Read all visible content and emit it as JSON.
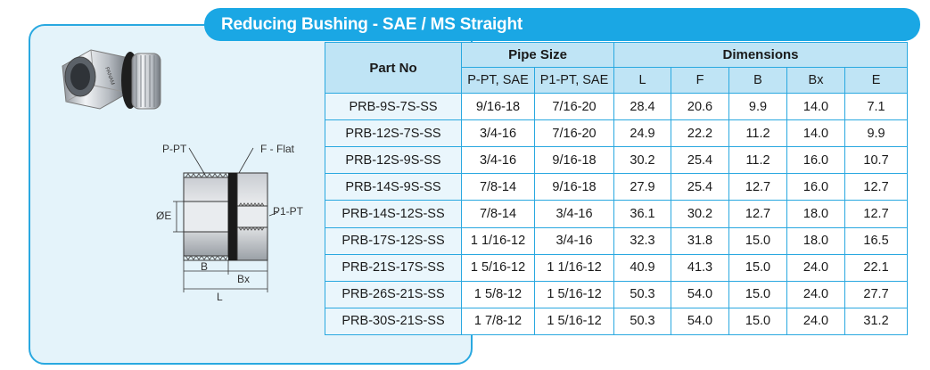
{
  "title": "Reducing Bushing - SAE / MS Straight",
  "image": {
    "brand_mark": "PANAM",
    "labels": {
      "p_pt": "P-PT",
      "f_flat": "F - Flat",
      "e": "ØE",
      "p1_pt": "P1-PT",
      "b": "B",
      "bx": "Bx",
      "l": "L"
    }
  },
  "table": {
    "headers": {
      "part_no": "Part No",
      "pipe_size": "Pipe Size",
      "dimensions": "Dimensions",
      "p_pt_sae": "P-PT, SAE",
      "p1_pt_sae": "P1-PT, SAE",
      "l": "L",
      "f": "F",
      "b": "B",
      "bx": "Bx",
      "e": "E"
    },
    "rows": [
      [
        "PRB-9S-7S-SS",
        "9/16-18",
        "7/16-20",
        "28.4",
        "20.6",
        "9.9",
        "14.0",
        "7.1"
      ],
      [
        "PRB-12S-7S-SS",
        "3/4-16",
        "7/16-20",
        "24.9",
        "22.2",
        "11.2",
        "14.0",
        "9.9"
      ],
      [
        "PRB-12S-9S-SS",
        "3/4-16",
        "9/16-18",
        "30.2",
        "25.4",
        "11.2",
        "16.0",
        "10.7"
      ],
      [
        "PRB-14S-9S-SS",
        "7/8-14",
        "9/16-18",
        "27.9",
        "25.4",
        "12.7",
        "16.0",
        "12.7"
      ],
      [
        "PRB-14S-12S-SS",
        "7/8-14",
        "3/4-16",
        "36.1",
        "30.2",
        "12.7",
        "18.0",
        "12.7"
      ],
      [
        "PRB-17S-12S-SS",
        "1 1/16-12",
        "3/4-16",
        "32.3",
        "31.8",
        "15.0",
        "18.0",
        "16.5"
      ],
      [
        "PRB-21S-17S-SS",
        "1 5/16-12",
        "1 1/16-12",
        "40.9",
        "41.3",
        "15.0",
        "24.0",
        "22.1"
      ],
      [
        "PRB-26S-21S-SS",
        "1 5/8-12",
        "1 5/16-12",
        "50.3",
        "54.0",
        "15.0",
        "24.0",
        "27.7"
      ],
      [
        "PRB-30S-21S-SS",
        "1 7/8-12",
        "1 5/16-12",
        "50.3",
        "54.0",
        "15.0",
        "24.0",
        "31.2"
      ]
    ]
  }
}
